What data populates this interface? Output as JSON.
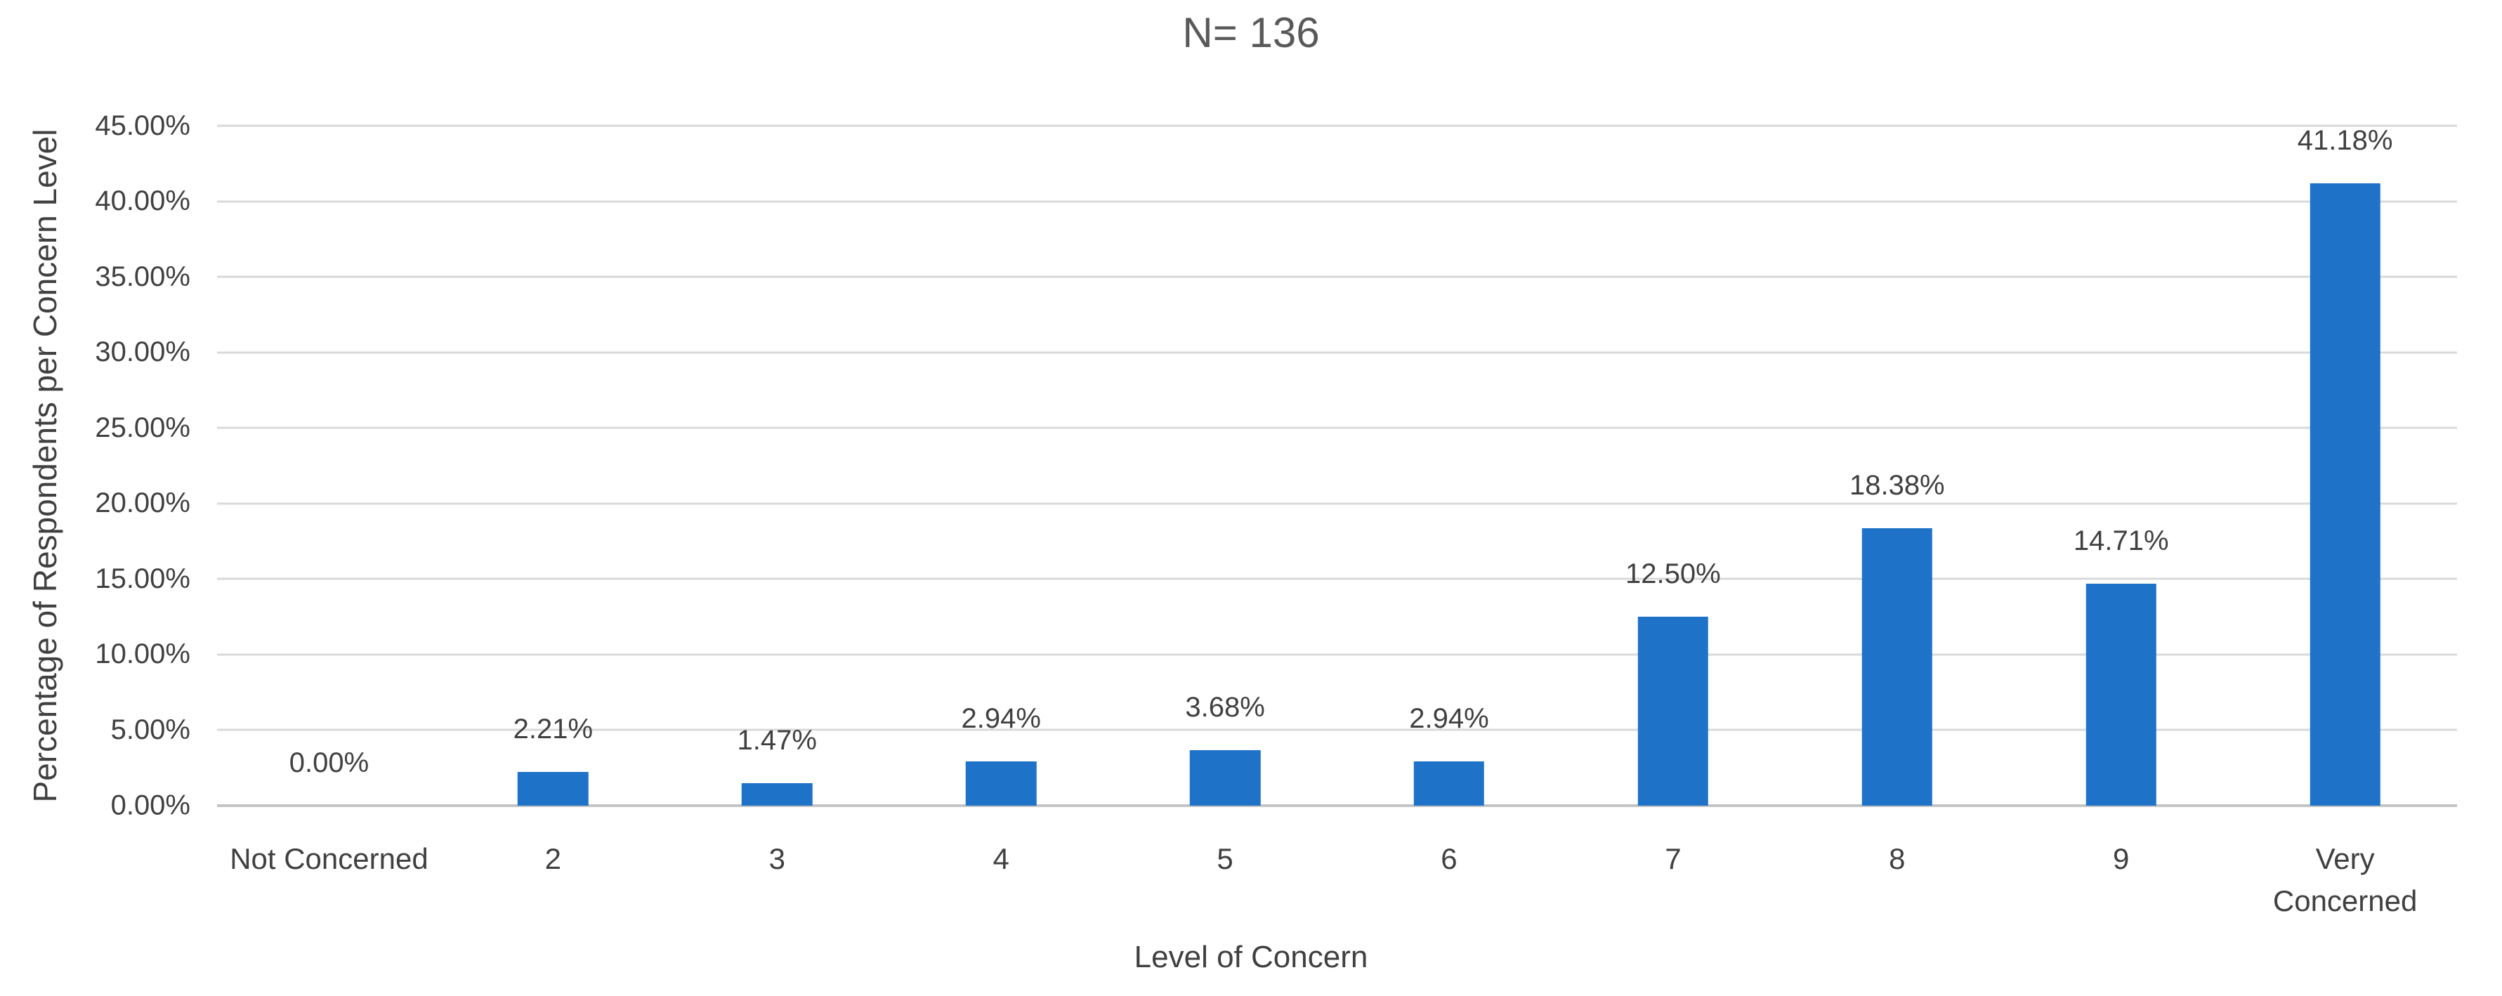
{
  "chart_data": {
    "type": "bar",
    "title": "N= 136",
    "xlabel": "Level of Concern",
    "ylabel": "Percentage of Respondents per Concern Level",
    "categories": [
      "Not Concerned",
      "2",
      "3",
      "4",
      "5",
      "6",
      "7",
      "8",
      "9",
      "Very Concerned"
    ],
    "values": [
      0.0,
      2.21,
      1.47,
      2.94,
      3.68,
      2.94,
      12.5,
      18.38,
      14.71,
      41.18
    ],
    "data_labels": [
      "0.00%",
      "2.21%",
      "1.47%",
      "2.94%",
      "3.68%",
      "2.94%",
      "12.50%",
      "18.38%",
      "14.71%",
      "41.18%"
    ],
    "x_tick_display": [
      "Not Concerned",
      "2",
      "3",
      "4",
      "5",
      "6",
      "7",
      "8",
      "9",
      "Very\nConcerned"
    ],
    "y_ticks": [
      {
        "value": 0,
        "label": "0.00%"
      },
      {
        "value": 5,
        "label": "5.00%"
      },
      {
        "value": 10,
        "label": "10.00%"
      },
      {
        "value": 15,
        "label": "15.00%"
      },
      {
        "value": 20,
        "label": "20.00%"
      },
      {
        "value": 25,
        "label": "25.00%"
      },
      {
        "value": 30,
        "label": "30.00%"
      },
      {
        "value": 35,
        "label": "35.00%"
      },
      {
        "value": 40,
        "label": "40.00%"
      },
      {
        "value": 45,
        "label": "45.00%"
      }
    ],
    "ylim": [
      0,
      45
    ],
    "grid": "horizontal",
    "legend": "none",
    "colors": {
      "bar": "#1e73c8",
      "gridline": "#d9d9d9",
      "axis_line": "#c4c4c4",
      "label_text": "#404040",
      "title_text": "#595959",
      "background": "#ffffff"
    }
  }
}
